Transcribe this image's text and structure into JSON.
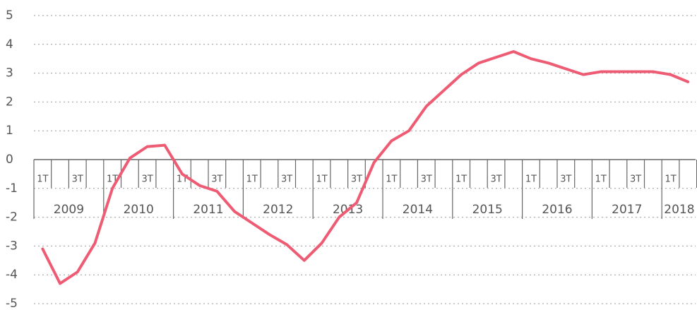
{
  "chart_data": {
    "type": "line",
    "categories": [
      "1T",
      null,
      "3T",
      null,
      "1T",
      null,
      "3T",
      null,
      "1T",
      null,
      "3T",
      null,
      "1T",
      null,
      "3T",
      null,
      "1T",
      null,
      "3T",
      null,
      "1T",
      null,
      "3T",
      null,
      "1T",
      null,
      "3T",
      null,
      "1T",
      null,
      "3T",
      null,
      "1T",
      null,
      "3T",
      null,
      "1T",
      null
    ],
    "groups": [
      "2009",
      "2010",
      "2011",
      "2012",
      "2013",
      "2014",
      "2015",
      "2016",
      "2017",
      "2018"
    ],
    "series": [
      {
        "color": "#ee5c74",
        "values": [
          -3.1,
          -4.3,
          -3.9,
          -2.9,
          -1.0,
          0.05,
          0.45,
          0.5,
          -0.5,
          -0.9,
          -1.1,
          -1.8,
          -2.2,
          -2.6,
          -2.95,
          -3.5,
          -2.9,
          -2.0,
          -1.5,
          -0.1,
          0.65,
          1.0,
          1.85,
          2.4,
          2.95,
          3.35,
          3.55,
          3.75,
          3.5,
          3.35,
          3.15,
          2.95,
          3.05,
          3.05,
          3.05,
          3.05,
          2.95,
          2.7
        ]
      }
    ],
    "ylim": [
      -5,
      5
    ],
    "yticks": [
      -5,
      -4,
      -3,
      -2,
      -1,
      0,
      1,
      2,
      3,
      4,
      5
    ],
    "grid": true
  }
}
